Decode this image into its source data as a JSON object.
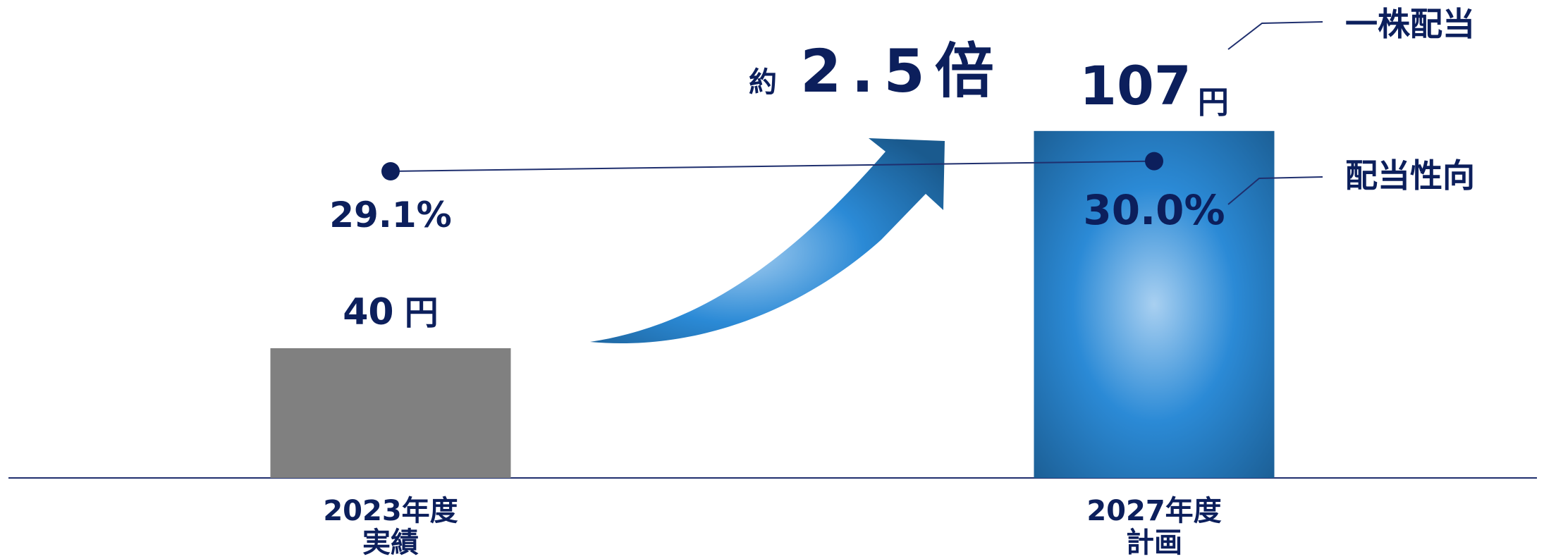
{
  "chart_data": {
    "type": "bar",
    "categories": [
      {
        "line1": "2023年度",
        "line2": "実績"
      },
      {
        "line1": "2027年度",
        "line2": "計画"
      }
    ],
    "series": [
      {
        "name": "一株配当",
        "values": [
          40,
          107
        ],
        "labels": [
          {
            "number": "40",
            "unit": "円"
          },
          {
            "number": "107",
            "unit": "円"
          }
        ]
      },
      {
        "name": "配当性向",
        "values": [
          29.1,
          30.0
        ],
        "labels": [
          "29.1%",
          "30.0%"
        ]
      }
    ],
    "growth_annotation": {
      "prefix": "約",
      "value": "2.5倍"
    },
    "colors": {
      "bar_2023": "#808080",
      "bar_2027_light": "#a9d0f1",
      "bar_2027_mid": "#2b8ad6",
      "bar_2027_dark": "#1a5a8e",
      "text": "#0c1f5c",
      "axis": "#1f2f6e"
    }
  }
}
